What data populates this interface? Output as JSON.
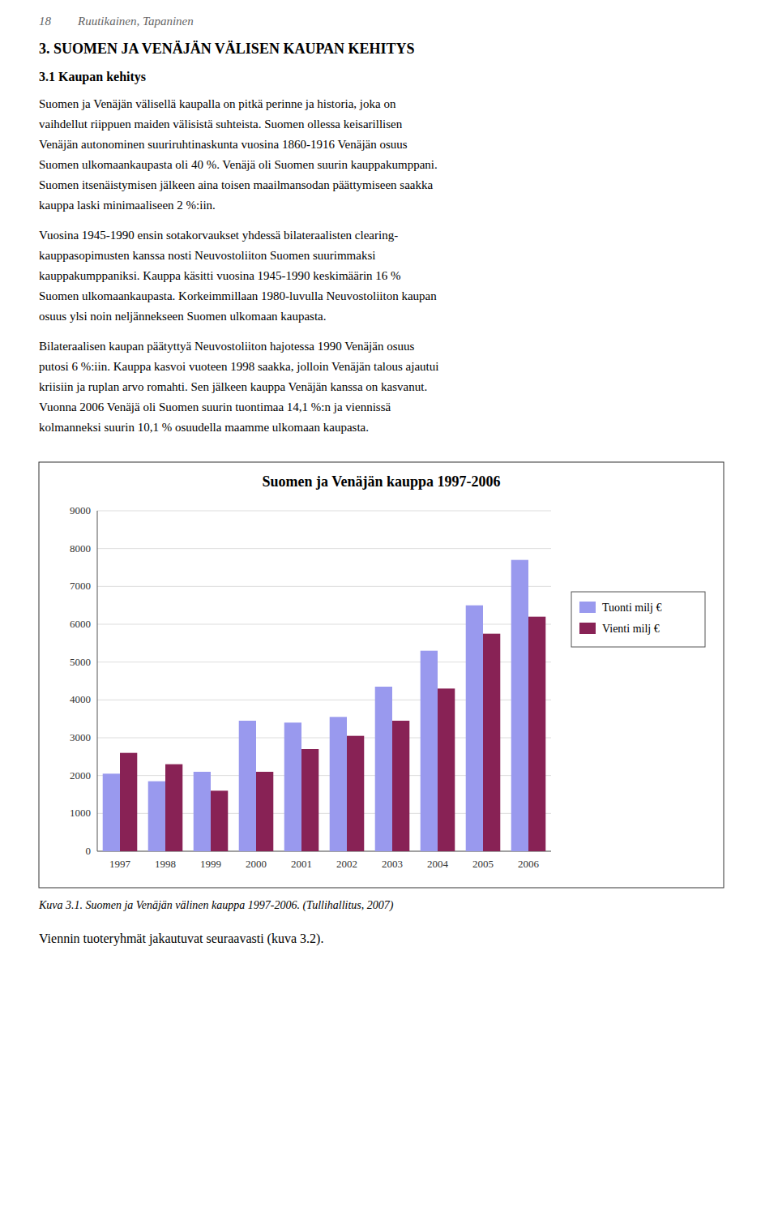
{
  "page": {
    "page_number": "18",
    "page_header": "Ruutikainen, Tapaninen",
    "section_title": "3. SUOMEN JA VENÄJÄN VÄLISEN KAUPAN KEHITYS",
    "subsection_title": "3.1 Kaupan kehitys",
    "paragraphs": [
      [
        "Suomen ja Venäjän välisellä kaupalla on pitkä perinne ja historia, joka on",
        "vaihdellut riippuen maiden välisistä suhteista. Suomen ollessa keisarillisen",
        "Venäjän autonominen suuriruhtinaskunta vuosina 1860-1916 Venäjän osuus",
        "Suomen ulkomaankaupasta oli 40 %. Venäjä oli Suomen suurin kauppakumppani.",
        "Suomen itsenäistymisen jälkeen aina toisen maailmansodan päättymiseen saakka",
        "kauppa laski minimaaliseen 2 %:iin."
      ],
      [
        "Vuosina 1945-1990 ensin sotakorvaukset yhdessä bilateraalisten clearing-",
        "kauppasopimusten kanssa nosti Neuvostoliiton Suomen suurimmaksi",
        "kauppakumppaniksi. Kauppa käsitti vuosina 1945-1990 keskimäärin 16 %",
        "Suomen ulkomaankaupasta. Korkeimmillaan 1980-luvulla Neuvostoliiton kaupan",
        "osuus ylsi noin neljännekseen Suomen ulkomaan kaupasta."
      ],
      [
        "Bilateraalisen kaupan päätyttyä Neuvostoliiton hajotessa 1990 Venäjän osuus",
        "putosi 6 %:iin. Kauppa kasvoi vuoteen 1998 saakka, jolloin Venäjän talous ajautui",
        "kriisiin ja ruplan arvo romahti. Sen jälkeen kauppa Venäjän kanssa on kasvanut.",
        "Vuonna 2006 Venäjä oli Suomen suurin tuontimaa 14,1 %:n ja viennissä",
        "kolmanneksi suurin 10,1 % osuudella maamme ulkomaan kaupasta."
      ]
    ],
    "caption": "Kuva 3.1. Suomen ja Venäjän välinen kauppa 1997-2006. (Tullihallitus, 2007)",
    "footer_text": "Viennin tuoteryhmät jakautuvat seuraavasti (kuva 3.2)."
  },
  "chart_data": {
    "type": "bar",
    "title": "Suomen ja Venäjän kauppa 1997-2006",
    "categories": [
      "1997",
      "1998",
      "1999",
      "2000",
      "2001",
      "2002",
      "2003",
      "2004",
      "2005",
      "2006"
    ],
    "series": [
      {
        "name": "Tuonti milj €",
        "color": "#9999EE",
        "values": [
          2050,
          1850,
          2100,
          3450,
          3400,
          3550,
          4350,
          5300,
          6500,
          7700
        ]
      },
      {
        "name": "Vienti milj €",
        "color": "#882255",
        "values": [
          2600,
          2300,
          1600,
          2100,
          2700,
          3050,
          3450,
          4300,
          5750,
          6200
        ]
      }
    ],
    "ylim": [
      0,
      9000
    ],
    "yticks": [
      0,
      1000,
      2000,
      3000,
      4000,
      5000,
      6000,
      7000,
      8000,
      9000
    ],
    "grid": true,
    "legend": "right"
  }
}
